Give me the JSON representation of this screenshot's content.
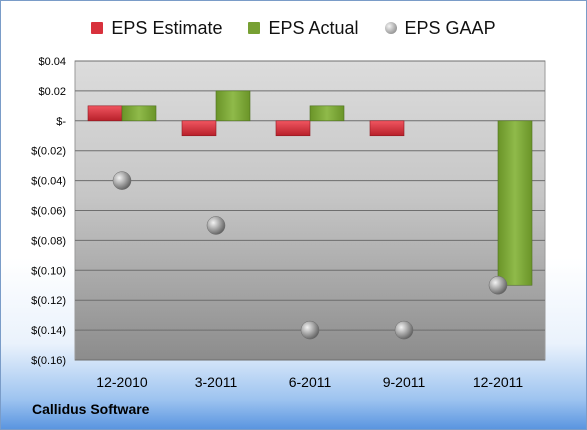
{
  "chart_data": {
    "type": "bar",
    "title": "",
    "categories": [
      "12-2010",
      "3-2011",
      "6-2011",
      "9-2011",
      "12-2011"
    ],
    "series": [
      {
        "name": "EPS Estimate",
        "kind": "bar",
        "color": "#d8313c",
        "values": [
          0.01,
          -0.01,
          -0.01,
          -0.01,
          null
        ]
      },
      {
        "name": "EPS Actual",
        "kind": "bar",
        "color": "#77a033",
        "values": [
          0.01,
          0.02,
          0.01,
          null,
          -0.11
        ]
      },
      {
        "name": "EPS GAAP",
        "kind": "marker",
        "color": "#a9a9a9",
        "values": [
          -0.04,
          -0.07,
          -0.14,
          -0.14,
          -0.11
        ]
      }
    ],
    "ylim": [
      -0.16,
      0.04
    ],
    "yticks": [
      0.04,
      0.02,
      0,
      -0.02,
      -0.04,
      -0.06,
      -0.08,
      -0.1,
      -0.12,
      -0.14,
      -0.16
    ],
    "ytick_labels": [
      "$0.04",
      "$0.02",
      "$-",
      "$(0.02)",
      "$(0.04)",
      "$(0.06)",
      "$(0.08)",
      "$(0.10)",
      "$(0.12)",
      "$(0.14)",
      "$(0.16)"
    ],
    "grid": true,
    "legend_position": "top"
  },
  "footer": {
    "company": "Callidus Software"
  }
}
